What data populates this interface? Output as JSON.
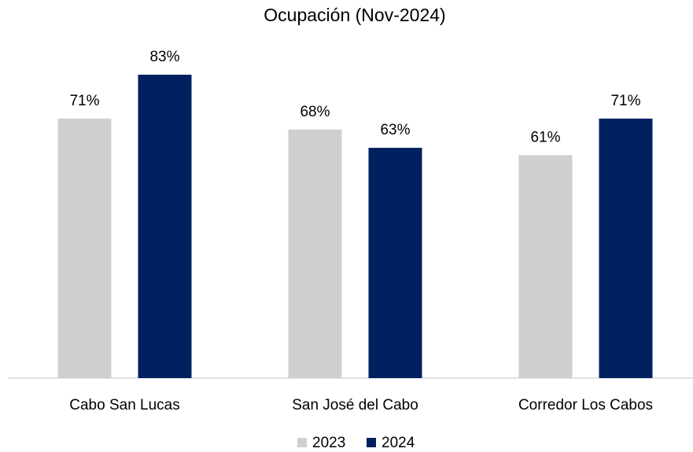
{
  "chart_data": {
    "type": "bar",
    "title": "Ocupación (Nov-2024)",
    "categories": [
      "Cabo San Lucas",
      "San José del Cabo",
      "Corredor Los Cabos"
    ],
    "series": [
      {
        "name": "2023",
        "color": "#d0cece",
        "values": [
          71,
          68,
          61
        ],
        "value_labels": [
          "71%",
          "68%",
          "61%"
        ]
      },
      {
        "name": "2024",
        "color": "#002060",
        "values": [
          83,
          63,
          71
        ],
        "value_labels": [
          "83%",
          "63%",
          "71%"
        ]
      }
    ],
    "legend": "bottom"
  }
}
